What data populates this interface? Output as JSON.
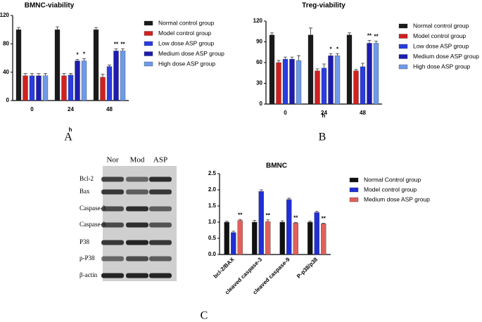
{
  "chart_data": [
    {
      "type": "bar",
      "title": "BMNC-viability",
      "x_label": "h",
      "categories": [
        "0",
        "24",
        "48"
      ],
      "ylim": [
        0,
        120
      ],
      "yticks": [
        0,
        40,
        80,
        120
      ],
      "series": [
        {
          "name": "Normal control group",
          "color": "#1a1a1a",
          "values": [
            100,
            100,
            100
          ],
          "errors": [
            3,
            4,
            3
          ]
        },
        {
          "name": "Model control group",
          "color": "#d21f1f",
          "values": [
            35,
            35,
            33
          ],
          "errors": [
            3,
            3,
            4
          ]
        },
        {
          "name": "Low dose ASP group",
          "color": "#2a3de0",
          "values": [
            35,
            36,
            48
          ],
          "errors": [
            3,
            2,
            2
          ]
        },
        {
          "name": "Medium dose ASP group",
          "color": "#1c1cb0",
          "values": [
            35,
            56,
            70
          ],
          "errors": [
            3,
            2,
            3
          ],
          "significance": [
            null,
            "*",
            "**"
          ]
        },
        {
          "name": "High dose ASP group",
          "color": "#6f9ae8",
          "values": [
            35,
            56,
            70
          ],
          "errors": [
            3,
            3,
            3
          ],
          "significance": [
            null,
            "*",
            "**"
          ]
        }
      ]
    },
    {
      "type": "bar",
      "title": "Treg-viability",
      "x_label": "h",
      "categories": [
        "0",
        "24",
        "48"
      ],
      "ylim": [
        0,
        120
      ],
      "yticks": [
        0,
        30,
        60,
        90,
        120
      ],
      "series": [
        {
          "name": "Normal control group",
          "color": "#1a1a1a",
          "values": [
            100,
            100,
            100
          ],
          "errors": [
            3,
            10,
            3
          ]
        },
        {
          "name": "Model control group",
          "color": "#d21f1f",
          "values": [
            60,
            48,
            48
          ],
          "errors": [
            3,
            3,
            2
          ]
        },
        {
          "name": "Low dose ASP group",
          "color": "#2a3de0",
          "values": [
            65,
            52,
            54
          ],
          "errors": [
            3,
            6,
            5
          ]
        },
        {
          "name": "Medium dose ASP group",
          "color": "#1c1cb0",
          "values": [
            65,
            70,
            88
          ],
          "errors": [
            3,
            3,
            4
          ],
          "significance": [
            null,
            "*",
            "**"
          ]
        },
        {
          "name": "High dose ASP group",
          "color": "#6f9ae8",
          "values": [
            63,
            70,
            88
          ],
          "errors": [
            7,
            3,
            3
          ],
          "significance": [
            null,
            "*",
            "**"
          ]
        }
      ]
    },
    {
      "type": "bar",
      "title": "BMNC",
      "categories": [
        "bcl-2/BAX",
        "cleaved caspase-3",
        "cleaved caspase-9",
        "P-p38/p38"
      ],
      "ylim": [
        0,
        2.5
      ],
      "yticks": [
        {
          "value": 0,
          "label": "0.0"
        },
        0.5,
        {
          "value": 1,
          "label": "1.0"
        },
        1.5,
        {
          "value": 2,
          "label": "2.0"
        },
        2.5
      ],
      "series": [
        {
          "name": "Normal Control group",
          "color": "#111111",
          "values": [
            1.0,
            1.0,
            1.0,
            1.0
          ],
          "errors": [
            0.03,
            0.05,
            0.04,
            0.03
          ]
        },
        {
          "name": "Model control group",
          "color": "#1f2fd6",
          "values": [
            0.68,
            1.95,
            1.7,
            1.3
          ],
          "errors": [
            0.04,
            0.05,
            0.04,
            0.04
          ]
        },
        {
          "name": "Medium dose ASP group",
          "color": "#e0605a",
          "values": [
            1.05,
            1.02,
            0.97,
            0.95
          ],
          "errors": [
            0.03,
            0.05,
            0.02,
            0.02
          ],
          "significance": [
            "**",
            "**",
            "**",
            "**"
          ]
        }
      ]
    }
  ],
  "blot": {
    "columns": [
      "Nor",
      "Mod",
      "ASP"
    ],
    "rows": [
      "Bcl-2",
      "Bax",
      "Caspase-3",
      "Caspase-9",
      "P38",
      "p-P38",
      "β-actin"
    ]
  },
  "panel_labels": [
    "A",
    "B",
    "C"
  ]
}
